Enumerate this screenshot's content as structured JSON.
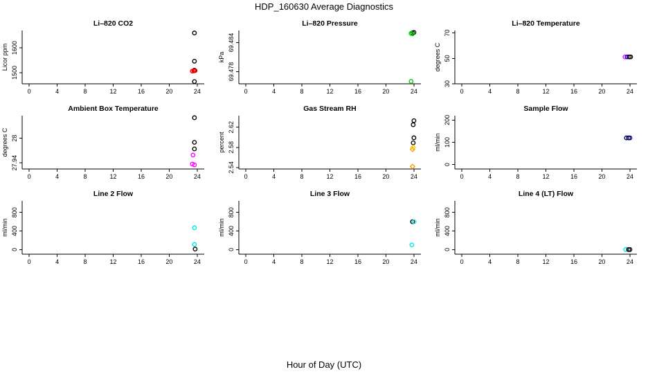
{
  "figure": {
    "title": "HDP_160630  Average Diagnostics",
    "xlabel": "Hour of Day (UTC)"
  },
  "chart_data": [
    {
      "type": "scatter",
      "title": "Li–820 CO2",
      "ylabel": "Licor ppm",
      "xlim": [
        -1,
        25
      ],
      "xticks": [
        0,
        4,
        8,
        12,
        16,
        20,
        24
      ],
      "ylim": [
        1455,
        1670
      ],
      "yticks": [
        1500,
        1600
      ],
      "points": [
        {
          "x": 23.6,
          "y": 1660,
          "color": "#000000",
          "marker": "circle"
        },
        {
          "x": 23.6,
          "y": 1546,
          "color": "#000000",
          "marker": "circle"
        },
        {
          "x": 23.6,
          "y": 1510,
          "color": "#000000",
          "marker": "circle"
        },
        {
          "x": 23.3,
          "y": 1506,
          "color": "#ff0000",
          "marker": "circle"
        },
        {
          "x": 23.5,
          "y": 1507,
          "color": "#ff0000",
          "marker": "circle"
        },
        {
          "x": 23.7,
          "y": 1508,
          "color": "#ff0000",
          "marker": "circle"
        },
        {
          "x": 23.6,
          "y": 1464,
          "color": "#000000",
          "marker": "circle"
        }
      ]
    },
    {
      "type": "scatter",
      "title": "Li–820 Pressure",
      "ylabel": "kPa",
      "xlim": [
        -1,
        25
      ],
      "xticks": [
        0,
        4,
        8,
        12,
        16,
        20,
        24
      ],
      "ylim": [
        69.4755,
        69.4865
      ],
      "yticks": [
        69.478,
        69.484
      ],
      "points": [
        {
          "x": 23.8,
          "y": 69.486,
          "color": "#000000",
          "marker": "circle"
        },
        {
          "x": 24.0,
          "y": 69.4861,
          "color": "#000000",
          "marker": "circle"
        },
        {
          "x": 23.6,
          "y": 69.4859,
          "color": "#00cc00",
          "marker": "circle"
        },
        {
          "x": 23.8,
          "y": 69.4858,
          "color": "#00cc00",
          "marker": "circle"
        },
        {
          "x": 23.6,
          "y": 69.476,
          "color": "#00cc00",
          "marker": "circle"
        }
      ]
    },
    {
      "type": "scatter",
      "title": "Li–820 Temperature",
      "ylabel": "degrees C",
      "xlim": [
        -1,
        25
      ],
      "xticks": [
        0,
        4,
        8,
        12,
        16,
        20,
        24
      ],
      "ylim": [
        30,
        72
      ],
      "yticks": [
        30,
        50,
        70
      ],
      "points": [
        {
          "x": 23.3,
          "y": 51.2,
          "color": "#ff00ff",
          "marker": "circle"
        },
        {
          "x": 23.6,
          "y": 51.2,
          "color": "#0000ff",
          "marker": "circle"
        },
        {
          "x": 23.9,
          "y": 51.2,
          "color": "#000000",
          "marker": "circle"
        },
        {
          "x": 24.1,
          "y": 51.2,
          "color": "#000000",
          "marker": "circle"
        }
      ]
    },
    {
      "type": "scatter",
      "title": "Ambient Box Temperature",
      "ylabel": "degrees C",
      "xlim": [
        -1,
        25
      ],
      "xticks": [
        0,
        4,
        8,
        12,
        16,
        20,
        24
      ],
      "ylim": [
        27.925,
        28.055
      ],
      "yticks": [
        27.94,
        28.0
      ],
      "points": [
        {
          "x": 23.6,
          "y": 28.05,
          "color": "#000000",
          "marker": "circle"
        },
        {
          "x": 23.6,
          "y": 27.99,
          "color": "#000000",
          "marker": "circle"
        },
        {
          "x": 23.6,
          "y": 27.974,
          "color": "#000000",
          "marker": "circle"
        },
        {
          "x": 23.4,
          "y": 27.959,
          "color": "#ff00ff",
          "marker": "circle"
        },
        {
          "x": 23.3,
          "y": 27.937,
          "color": "#ff00ff",
          "marker": "circle"
        },
        {
          "x": 23.6,
          "y": 27.935,
          "color": "#ff00ff",
          "marker": "circle"
        }
      ]
    },
    {
      "type": "scatter",
      "title": "Gas Stream RH",
      "ylabel": "percent",
      "xlim": [
        -1,
        25
      ],
      "xticks": [
        0,
        4,
        8,
        12,
        16,
        20,
        24
      ],
      "ylim": [
        2.537,
        2.643
      ],
      "yticks": [
        2.54,
        2.58,
        2.62
      ],
      "points": [
        {
          "x": 24.0,
          "y": 2.633,
          "color": "#000000",
          "marker": "circle"
        },
        {
          "x": 23.9,
          "y": 2.625,
          "color": "#000000",
          "marker": "circle"
        },
        {
          "x": 24.0,
          "y": 2.599,
          "color": "#000000",
          "marker": "circle"
        },
        {
          "x": 23.9,
          "y": 2.589,
          "color": "#000000",
          "marker": "circle"
        },
        {
          "x": 23.8,
          "y": 2.576,
          "color": "#ff9900",
          "marker": "diamond"
        },
        {
          "x": 23.9,
          "y": 2.58,
          "color": "#ffcc00",
          "marker": "diamond"
        },
        {
          "x": 23.8,
          "y": 2.542,
          "color": "#ff9900",
          "marker": "diamond"
        }
      ]
    },
    {
      "type": "scatter",
      "title": "Sample Flow",
      "ylabel": "ml/min",
      "xlim": [
        -1,
        25
      ],
      "xticks": [
        0,
        4,
        8,
        12,
        16,
        20,
        24
      ],
      "ylim": [
        -20,
        220
      ],
      "yticks": [
        0,
        100,
        200
      ],
      "points": [
        {
          "x": 23.5,
          "y": 120,
          "color": "#000080",
          "marker": "circle"
        },
        {
          "x": 23.8,
          "y": 120,
          "color": "#000000",
          "marker": "circle"
        },
        {
          "x": 24.0,
          "y": 120,
          "color": "#000080",
          "marker": "circle"
        }
      ]
    },
    {
      "type": "scatter",
      "title": "Line 2 Flow",
      "ylabel": "ml/min",
      "xlim": [
        -1,
        25
      ],
      "xticks": [
        0,
        4,
        8,
        12,
        16,
        20,
        24
      ],
      "ylim": [
        -100,
        1050
      ],
      "yticks": [
        0,
        400,
        800
      ],
      "points": [
        {
          "x": 23.6,
          "y": 470,
          "color": "#00e5e5",
          "marker": "circle"
        },
        {
          "x": 23.6,
          "y": 110,
          "color": "#00e5e5",
          "marker": "circle"
        },
        {
          "x": 23.7,
          "y": 10,
          "color": "#000000",
          "marker": "circle"
        }
      ]
    },
    {
      "type": "scatter",
      "title": "Line 3 Flow",
      "ylabel": "ml/min",
      "xlim": [
        -1,
        25
      ],
      "xticks": [
        0,
        4,
        8,
        12,
        16,
        20,
        24
      ],
      "ylim": [
        -100,
        1050
      ],
      "yticks": [
        0,
        400,
        800
      ],
      "points": [
        {
          "x": 23.8,
          "y": 600,
          "color": "#000000",
          "marker": "circle"
        },
        {
          "x": 24.0,
          "y": 600,
          "color": "#00e5e5",
          "marker": "circle"
        },
        {
          "x": 23.7,
          "y": 100,
          "color": "#00e5e5",
          "marker": "circle"
        }
      ]
    },
    {
      "type": "scatter",
      "title": "Line 4 (LT) Flow",
      "ylabel": "ml/min",
      "xlim": [
        -1,
        25
      ],
      "xticks": [
        0,
        4,
        8,
        12,
        16,
        20,
        24
      ],
      "ylim": [
        -100,
        1050
      ],
      "yticks": [
        0,
        400,
        800
      ],
      "points": [
        {
          "x": 23.4,
          "y": 0,
          "color": "#00e5e5",
          "marker": "circle"
        },
        {
          "x": 23.8,
          "y": 0,
          "color": "#000000",
          "marker": "circle"
        },
        {
          "x": 24.0,
          "y": 0,
          "color": "#000000",
          "marker": "circle"
        }
      ]
    }
  ]
}
